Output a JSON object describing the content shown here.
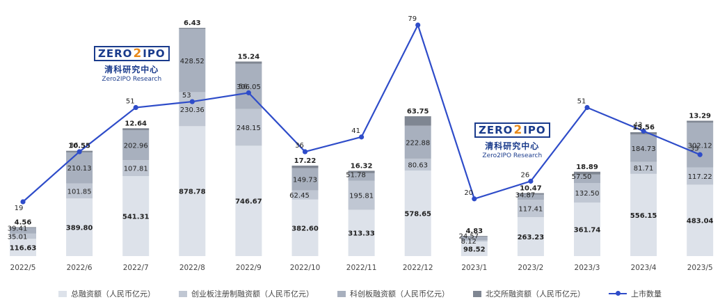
{
  "logo": {
    "name_left": "ZERO",
    "name_mid": "2",
    "name_right": "IPO",
    "cn": "清科研究中心",
    "en": "Zero2IPO Research"
  },
  "legend": [
    {
      "name": "总融资额（人民币亿元）",
      "color": "#dde2ea"
    },
    {
      "name": "创业板注册制融资额（人民币亿元）",
      "color": "#c0c7d3"
    },
    {
      "name": "科创板融资额（人民币亿元）",
      "color": "#a8b0be"
    },
    {
      "name": "北交所融资额（人民币亿元）",
      "color": "#7f8692"
    },
    {
      "name": "上市数量",
      "color": "#2e4cc9"
    }
  ],
  "chart_data": {
    "type": "bar+line",
    "categories": [
      "2022/5",
      "2022/6",
      "2022/7",
      "2022/8",
      "2022/9",
      "2022/10",
      "2022/11",
      "2022/12",
      "2023/1",
      "2023/2",
      "2023/3",
      "2023/4",
      "2023/5"
    ],
    "series": [
      {
        "name": "总融资额（人民币亿元）",
        "type": "bar",
        "values": [
          116.63,
          389.8,
          541.31,
          878.78,
          746.67,
          382.6,
          313.33,
          578.65,
          98.52,
          263.23,
          361.74,
          556.15,
          483.04
        ]
      },
      {
        "name": "创业板注册制融资额（人民币亿元）",
        "type": "bar",
        "values": [
          35.01,
          101.85,
          107.81,
          230.36,
          248.15,
          62.45,
          195.81,
          80.63,
          8.12,
          117.41,
          132.5,
          81.71,
          117.22
        ]
      },
      {
        "name": "科创板融资额（人民币亿元）",
        "type": "bar",
        "values": [
          39.41,
          210.13,
          202.96,
          428.52,
          306.05,
          149.73,
          51.78,
          222.88,
          24.57,
          34.87,
          57.5,
          184.73,
          302.12
        ]
      },
      {
        "name": "北交所融资额（人民币亿元）",
        "type": "bar",
        "values": [
          4.56,
          10.55,
          12.64,
          6.43,
          15.24,
          17.22,
          16.32,
          63.75,
          4.83,
          10.47,
          18.89,
          15.56,
          13.29
        ]
      },
      {
        "name": "上市数量",
        "type": "line",
        "values": [
          19,
          36,
          51,
          53,
          56,
          36,
          41,
          79,
          20,
          26,
          51,
          43,
          35
        ]
      }
    ]
  }
}
